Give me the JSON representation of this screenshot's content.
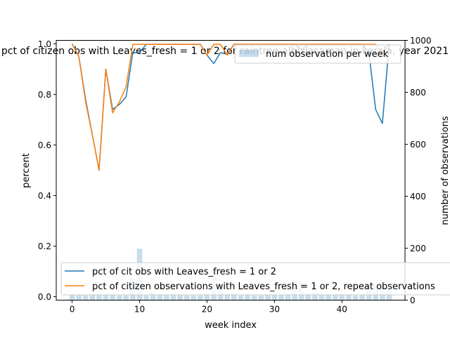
{
  "chart_data": {
    "type": "line",
    "title": "pct of citizen obs with Leaves_fresh = 1 or 2 for raintree-albiziasaman in kerala, year 2021",
    "xlabel": "week index",
    "ylabel": "percent",
    "ylabel_right": "number of observations",
    "xlim": [
      -2.35,
      49.35
    ],
    "ylim": [
      -0.0135,
      1.0135
    ],
    "ylim_right": [
      0,
      1000
    ],
    "xticks": [
      0,
      10,
      20,
      30,
      40
    ],
    "yticks": [
      0.0,
      0.2,
      0.4,
      0.6,
      0.8,
      1.0
    ],
    "yticks_right": [
      0,
      200,
      400,
      600,
      800,
      1000
    ],
    "grid": false,
    "x": [
      0,
      1,
      2,
      3,
      4,
      5,
      6,
      7,
      8,
      9,
      10,
      11,
      12,
      13,
      14,
      15,
      16,
      17,
      18,
      19,
      20,
      21,
      22,
      23,
      24,
      25,
      26,
      27,
      28,
      29,
      30,
      31,
      32,
      33,
      34,
      35,
      36,
      37,
      38,
      39,
      40,
      41,
      42,
      43,
      44,
      45,
      46,
      47
    ],
    "series": [
      {
        "name": "pct of cit obs with Leaves_fresh = 1 or 2",
        "axis": "left",
        "color": "#1f77b4",
        "values": [
          1.0,
          0.95,
          0.78,
          0.64,
          0.5,
          0.9,
          0.74,
          0.76,
          0.79,
          0.965,
          0.965,
          0.998,
          0.998,
          0.998,
          0.998,
          0.998,
          0.998,
          0.998,
          0.998,
          0.998,
          0.955,
          0.922,
          0.965,
          0.958,
          0.998,
          0.998,
          0.998,
          0.998,
          0.998,
          0.998,
          0.998,
          0.998,
          0.998,
          0.998,
          0.975,
          0.998,
          0.998,
          0.998,
          0.998,
          0.998,
          0.998,
          0.998,
          0.998,
          0.998,
          0.965,
          0.74,
          0.685,
          0.998
        ]
      },
      {
        "name": "pct of citizen observations with Leaves_fresh = 1 or 2, repeat observations",
        "axis": "left",
        "color": "#ff7f0e",
        "values": [
          1.0,
          0.95,
          0.77,
          0.64,
          0.5,
          0.9,
          0.727,
          0.77,
          0.83,
          0.998,
          0.998,
          0.998,
          0.998,
          0.998,
          0.998,
          0.998,
          0.998,
          0.998,
          0.998,
          0.998,
          0.955,
          0.998,
          0.998,
          0.955,
          0.998,
          0.998,
          0.998,
          0.998,
          0.998,
          0.998,
          0.998,
          0.998,
          0.998,
          0.998,
          0.998,
          0.998,
          0.998,
          0.998,
          0.998,
          0.998,
          0.998,
          0.998,
          0.998,
          0.998,
          0.998,
          0.998,
          0.965,
          0.998
        ]
      },
      {
        "name": "num observation per week",
        "axis": "right",
        "type": "bar",
        "color": "#1f77b4",
        "opacity": 0.25,
        "values": [
          20,
          22,
          18,
          22,
          20,
          20,
          20,
          18,
          18,
          85,
          198,
          18,
          28,
          22,
          20,
          22,
          22,
          18,
          18,
          18,
          20,
          115,
          60,
          20,
          28,
          18,
          22,
          18,
          18,
          20,
          20,
          20,
          25,
          75,
          65,
          25,
          30,
          20,
          22,
          20,
          22,
          20,
          18,
          20,
          65,
          55,
          62,
          40
        ]
      }
    ],
    "legend_upper": {
      "placement": "top-right"
    },
    "legend_lower": {
      "placement": "bottom-left"
    }
  }
}
